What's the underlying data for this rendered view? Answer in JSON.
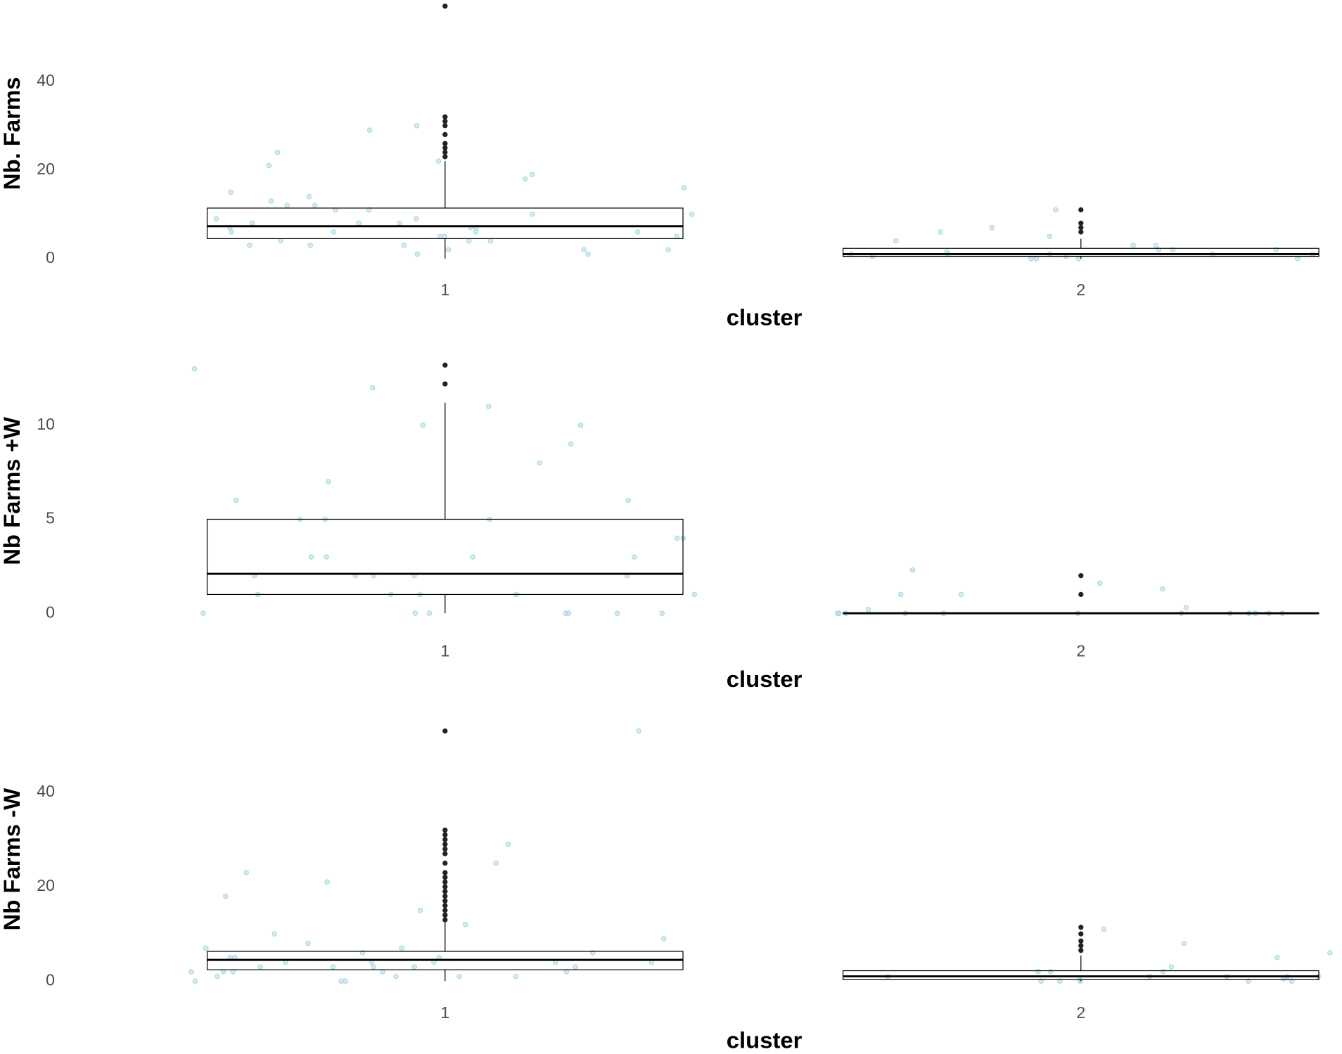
{
  "chart_data": [
    {
      "type": "box",
      "y_label": "Nb. Farms",
      "x_label": "cluster",
      "categories": [
        "1",
        "2"
      ],
      "ylim": [
        -1.5,
        58
      ],
      "yticks": [
        0,
        20,
        40
      ],
      "box_color": "#000000",
      "point_color": "#add8e6",
      "boxes": [
        {
          "min": 0,
          "q1": 4.5,
          "median": 7.3,
          "q3": 11.4,
          "max": 22,
          "outliers": [
            23,
            24,
            25,
            26,
            28,
            30,
            31,
            32,
            57
          ],
          "points": [
            5,
            7,
            3,
            12,
            9,
            2,
            15,
            6,
            4,
            8,
            11,
            1,
            18,
            7,
            5,
            3,
            10,
            13,
            6,
            22,
            4,
            9,
            2,
            16,
            8,
            30,
            5,
            12,
            3,
            7,
            19,
            6,
            24,
            10,
            1,
            14,
            4,
            8,
            21,
            2,
            29,
            11,
            6
          ]
        },
        {
          "min": 0,
          "q1": 0.5,
          "median": 1,
          "q3": 2.3,
          "max": 4.5,
          "outliers": [
            6,
            7,
            8,
            11
          ],
          "points": [
            0,
            1,
            2,
            0.5,
            1.5,
            3,
            0,
            1,
            2,
            4,
            6,
            11,
            0.5,
            1,
            0,
            2,
            3,
            1,
            7,
            5,
            0,
            1
          ]
        }
      ]
    },
    {
      "type": "box",
      "y_label": "Nb Farms +W",
      "x_label": "cluster",
      "categories": [
        "1",
        "2"
      ],
      "ylim": [
        -0.6,
        13.6
      ],
      "yticks": [
        0,
        5,
        10
      ],
      "box_color": "#000000",
      "point_color": "#add8e6",
      "boxes": [
        {
          "min": 0,
          "q1": 1,
          "median": 2.1,
          "q3": 5,
          "max": 11.2,
          "outliers": [
            12.2,
            13.2
          ],
          "points": [
            0,
            1,
            2,
            5,
            3,
            0,
            1,
            7,
            10,
            2,
            4,
            0,
            6,
            9,
            1,
            3,
            0,
            2,
            12,
            5,
            1,
            8,
            0,
            3,
            4,
            13,
            2,
            11,
            0,
            6,
            1,
            10,
            3,
            5,
            0,
            2
          ]
        },
        {
          "min": 0,
          "q1": 0,
          "median": 0,
          "q3": 0,
          "max": 0,
          "outliers": [
            1,
            2
          ],
          "points": [
            0,
            0,
            1,
            0,
            0,
            0.3,
            0,
            1.3,
            0,
            0,
            0,
            2.3,
            0,
            0.2,
            0,
            1.6,
            0,
            0,
            1,
            0
          ]
        }
      ]
    },
    {
      "type": "box",
      "y_label": "Nb Farms -W",
      "x_label": "cluster",
      "categories": [
        "1",
        "2"
      ],
      "ylim": [
        -2.4,
        54
      ],
      "yticks": [
        0,
        20,
        40
      ],
      "box_color": "#000000",
      "point_color": "#add8e6",
      "boxes": [
        {
          "min": 0,
          "q1": 2.4,
          "median": 4.5,
          "q3": 6.3,
          "max": 12.5,
          "outliers": [
            13,
            14,
            15,
            16,
            17,
            18,
            19,
            20,
            21,
            22,
            23,
            25,
            27,
            28,
            29,
            30,
            31,
            32,
            53
          ],
          "points": [
            1,
            3,
            5,
            2,
            4,
            8,
            0,
            6,
            3,
            10,
            2,
            29,
            5,
            1,
            23,
            4,
            7,
            0,
            3,
            15,
            2,
            6,
            9,
            4,
            1,
            21,
            3,
            5,
            53,
            2,
            18,
            4,
            0,
            7,
            25,
            3,
            2,
            12,
            4,
            1
          ]
        },
        {
          "min": 0,
          "q1": 0.3,
          "median": 1,
          "q3": 2.2,
          "max": 5.4,
          "outliers": [
            6.5,
            7.5,
            8.5,
            10,
            11.4
          ],
          "points": [
            0,
            1,
            0.5,
            2,
            0,
            1,
            3,
            0,
            1,
            5,
            2,
            0.3,
            8,
            1,
            0,
            11,
            6,
            1,
            0,
            2
          ]
        }
      ]
    }
  ]
}
